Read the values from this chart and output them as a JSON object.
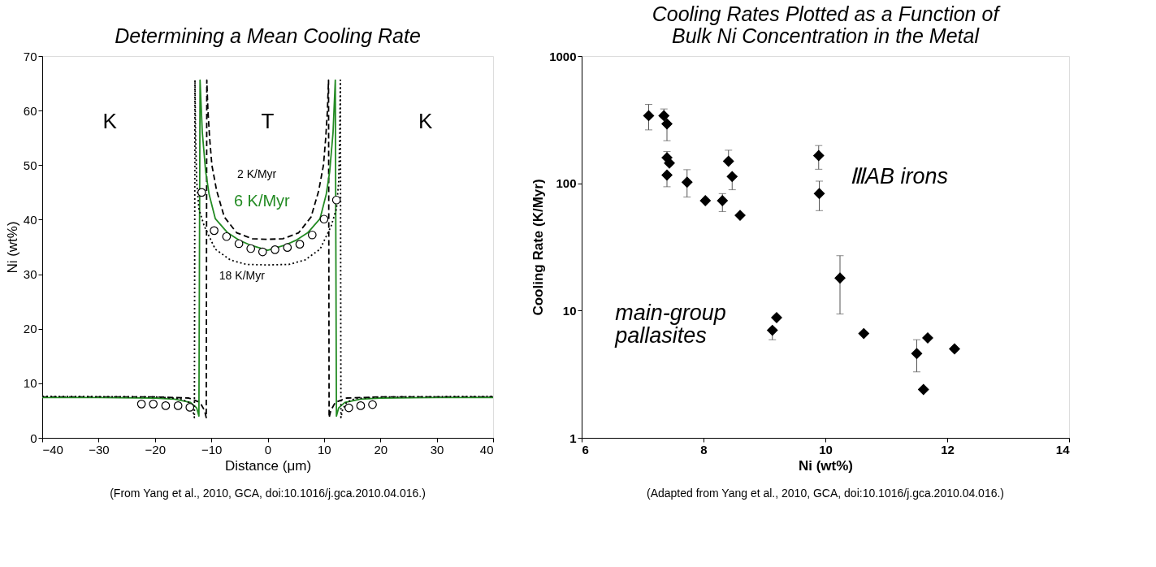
{
  "chart_data": [
    {
      "type": "line",
      "title": "Determining a Mean Cooling Rate",
      "xlabel": "Distance (μm)",
      "ylabel": "Ni (wt%)",
      "xlim": [
        -40,
        40
      ],
      "ylim": [
        0,
        70
      ],
      "xticks": [
        -40,
        -30,
        -20,
        -10,
        0,
        10,
        20,
        30,
        40
      ],
      "yticks": [
        0,
        10,
        20,
        30,
        40,
        50,
        60,
        70
      ],
      "grid": false,
      "annotations": [
        "K",
        "T",
        "K",
        "(From Yang et al., 2010, GCA, doi:10.1016/j.gca.2010.04.016.)"
      ],
      "series": [
        {
          "name": "2 K/Myr",
          "color": "#000000",
          "line_style": "dashed",
          "x": [
            -40,
            -20,
            -14,
            -12,
            -11.2,
            -10.9,
            -10.8,
            -10.6,
            -10.3,
            -9.9,
            -9.05,
            -7.7,
            -5.5,
            -2.7,
            0,
            2.7,
            5.5,
            7.7,
            9.05,
            9.9,
            10.3,
            10.6,
            10.8,
            10.9,
            11.2,
            12,
            14,
            20,
            40
          ],
          "values": [
            7.5,
            7.5,
            7.3,
            6.5,
            5,
            3.7,
            65.6,
            60,
            55,
            50,
            45.3,
            40.5,
            37.6,
            36.5,
            36.4,
            36.5,
            37.6,
            40.5,
            45.3,
            50,
            55,
            60,
            65.6,
            3.7,
            5,
            6.5,
            7.3,
            7.5,
            7.5
          ]
        },
        {
          "name": "6 K/Myr",
          "color": "#238b23",
          "line_style": "solid",
          "x": [
            -40,
            -30,
            -20,
            -16.5,
            -13.7,
            -12.6,
            -12.2,
            -12.0,
            -11.6,
            -11.0,
            -10.4,
            -9.3,
            -7.1,
            -5,
            -3,
            0,
            3,
            5,
            7.1,
            9.3,
            10.4,
            11.0,
            11.6,
            12.0,
            12.2,
            12.6,
            13.7,
            16.5,
            20,
            30,
            40
          ],
          "values": [
            7.4,
            7.4,
            7.3,
            7.1,
            6.5,
            5.5,
            4.0,
            65.6,
            56,
            48.8,
            44.7,
            40.2,
            37.6,
            36.2,
            35.3,
            34.4,
            35.3,
            36.2,
            37.6,
            40.2,
            44.7,
            48.8,
            56,
            65.6,
            4.0,
            5.5,
            6.5,
            7.1,
            7.3,
            7.4,
            7.4
          ]
        },
        {
          "name": "18 K/Myr",
          "color": "#000000",
          "line_style": "dotted",
          "x": [
            -40,
            -20,
            -15.5,
            -14,
            -13.3,
            -13.0,
            -12.9,
            -12.8,
            -12.6,
            -12.2,
            -11.25,
            -9.3,
            -6.6,
            -3.8,
            0,
            3.8,
            6.6,
            9.3,
            11.25,
            12.2,
            12.6,
            12.8,
            12.9,
            13.0,
            13.3,
            14,
            15.5,
            20,
            40
          ],
          "values": [
            7.6,
            7.5,
            7.2,
            6.5,
            5.2,
            3.7,
            65.6,
            56,
            47,
            42,
            38.8,
            34.6,
            32.6,
            31.8,
            31.7,
            31.8,
            32.6,
            34.6,
            38.8,
            42,
            47,
            56,
            65.6,
            3.7,
            5.2,
            6.5,
            7.2,
            7.5,
            7.6
          ]
        },
        {
          "type": "scatter",
          "color": "#000000",
          "marker": "circle",
          "x": [
            -22.4,
            -20.3,
            -18.1,
            -15.9,
            -13.8,
            -11.7,
            -9.5,
            -7.3,
            -5.1,
            -3.0,
            -0.9,
            1.3,
            3.5,
            5.7,
            7.9,
            10.0,
            12.2,
            14.4,
            16.5,
            18.6
          ],
          "values": [
            6.2,
            6.2,
            5.9,
            5.9,
            5.6,
            45.0,
            38.0,
            36.9,
            35.6,
            34.7,
            34.1,
            34.5,
            34.9,
            35.5,
            37.2,
            40.1,
            43.6,
            5.5,
            5.9,
            6.1
          ]
        }
      ]
    },
    {
      "type": "scatter",
      "title": "Cooling Rates Plotted as a Function of\nBulk Ni Concentration in the Metal",
      "xlabel": "Ni (wt%)",
      "ylabel": "Cooling Rate (K/Myr)",
      "log": "y",
      "xlim": [
        6,
        14
      ],
      "ylim": [
        1,
        1000
      ],
      "xticks": [
        6,
        8,
        10,
        12,
        14
      ],
      "yticks": [
        1,
        10,
        100,
        1000
      ],
      "grid": false,
      "annotations": [
        "(Adapted from Yang et al., 2010, GCA, doi:10.1016/j.gca.2010.04.016.)"
      ],
      "series": [
        {
          "name": "ⅢAB irons",
          "color": "#000000",
          "marker": "diamond",
          "x": [
            7.1,
            7.35,
            7.4,
            7.4,
            7.44,
            7.4,
            7.73,
            8.03,
            8.31,
            8.41,
            8.47,
            8.6,
            9.89,
            9.9
          ],
          "values": [
            340,
            340,
            293,
            159,
            144,
            116,
            102,
            73,
            73,
            149,
            113,
            56,
            165,
            83
          ],
          "errors": [
            [
              263,
              417
            ],
            [
              340,
              384
            ],
            [
              216,
              293
            ],
            [
              159,
              178
            ],
            null,
            [
              94,
              116
            ],
            [
              78,
              128
            ],
            null,
            [
              60,
              83
            ],
            [
              149,
              182
            ],
            [
              89,
              113
            ],
            null,
            [
              129,
              198
            ],
            [
              61,
              104
            ]
          ]
        },
        {
          "name": "main-group pallasites",
          "color": "#000000",
          "marker": "diamond",
          "x": [
            10.24,
            9.2,
            9.13,
            10.63,
            11.68,
            11.5,
            12.12,
            11.61
          ],
          "values": [
            18,
            8.8,
            7.0,
            6.6,
            6.1,
            4.6,
            5.0,
            2.4
          ],
          "errors": [
            [
              9.4,
              27
            ],
            null,
            [
              5.9,
              7.0
            ],
            null,
            null,
            [
              3.3,
              5.9
            ],
            null,
            null
          ]
        }
      ]
    }
  ]
}
